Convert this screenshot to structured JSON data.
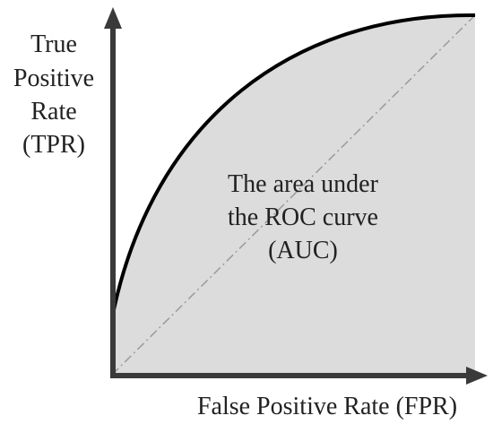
{
  "diagram": {
    "y_label_lines": [
      "True",
      "Positive",
      "Rate",
      "(TPR)"
    ],
    "x_label": "False Positive Rate (FPR)",
    "area_label_lines": [
      "The area under",
      "the ROC curve",
      "(AUC)"
    ]
  },
  "colors": {
    "area_fill": "#dcdcdc",
    "curve": "#000000",
    "axis": "#3a3a3a",
    "diagonal": "#9a9a9a"
  }
}
